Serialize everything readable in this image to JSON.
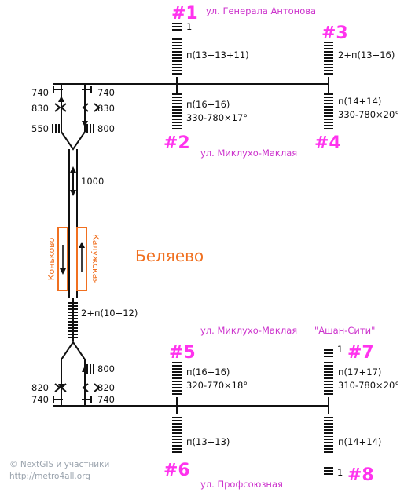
{
  "station_name": "Беляево",
  "colors": {
    "line": "#111111",
    "exit": "#ff33ee",
    "street": "#cc33cc",
    "station": "#f07020",
    "credit": "#9aa3ad"
  },
  "exits": {
    "e1": {
      "num": "#1",
      "street": "ул. Генерала Антонова",
      "steps": [
        "1",
        "п(13+13+11)"
      ]
    },
    "e2": {
      "num": "#2",
      "street": "ул. Миклухо-Маклая",
      "steps": [
        "п(16+16)",
        "330-780×17°"
      ]
    },
    "e3": {
      "num": "#3",
      "steps": [
        "2+п(13+16)"
      ]
    },
    "e4": {
      "num": "#4",
      "steps": [
        "п(14+14)",
        "330-780×20°"
      ]
    },
    "e5": {
      "num": "#5",
      "street": "ул. Миклухо-Маклая",
      "steps": [
        "п(16+16)",
        "320-770×18°"
      ]
    },
    "e6": {
      "num": "#6",
      "street": "ул. Профсоюзная",
      "steps": [
        "п(13+13)"
      ]
    },
    "e7": {
      "num": "#7",
      "street": "\"Ашан-Сити\"",
      "steps": [
        "1",
        "п(17+17)",
        "310-780×20°"
      ]
    },
    "e8": {
      "num": "#8",
      "steps": [
        "п(14+14)",
        "1"
      ]
    }
  },
  "north_vestibule": {
    "widths": [
      "740",
      "740",
      "830",
      "830",
      "550",
      "800"
    ],
    "escalator": "1000"
  },
  "south_vestibule": {
    "stairs": "2+п(10+12)",
    "widths": [
      "800",
      "820",
      "820",
      "740",
      "740"
    ]
  },
  "platform": {
    "left_direction": "Коньково",
    "right_direction": "Калужская"
  },
  "credit": [
    "© NextGIS и участники",
    "http://metro4all.org"
  ]
}
